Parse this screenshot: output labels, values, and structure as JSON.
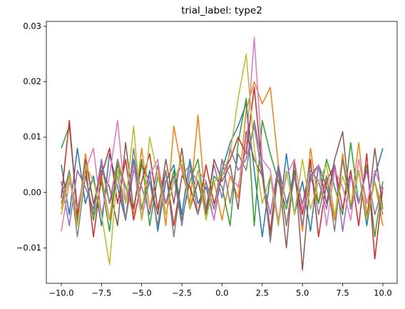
{
  "chart_data": {
    "type": "line",
    "title": "trial_label: type2",
    "x": [
      -10,
      -9.5,
      -9,
      -8.5,
      -8,
      -7.5,
      -7,
      -6.5,
      -6,
      -5.5,
      -5,
      -4.5,
      -4,
      -3.5,
      -3,
      -2.5,
      -2,
      -1.5,
      -1,
      -0.5,
      0,
      0.5,
      1,
      1.5,
      2,
      2.5,
      3,
      3.5,
      4,
      4.5,
      5,
      5.5,
      6,
      6.5,
      7,
      7.5,
      8,
      8.5,
      9,
      9.5,
      10
    ],
    "series": [
      {
        "color": "#1f77b4",
        "values": [
          0.005,
          -0.004,
          0.008,
          -0.002,
          0.003,
          -0.006,
          0.007,
          0.001,
          -0.005,
          0.006,
          -0.003,
          0.004,
          -0.007,
          0.002,
          0.005,
          -0.004,
          0.006,
          -0.002,
          0.001,
          -0.005,
          0.004,
          0.009,
          0.012,
          0.016,
          0.004,
          -0.008,
          0.003,
          -0.006,
          0.007,
          -0.004,
          0.002,
          -0.007,
          0.005,
          0.001,
          -0.005,
          0.006,
          -0.003,
          0.004,
          -0.006,
          0.003,
          0.008
        ]
      },
      {
        "color": "#ff7f0e",
        "values": [
          -0.003,
          0.004,
          -0.006,
          0.007,
          -0.002,
          0.003,
          -0.005,
          0.006,
          0.001,
          -0.004,
          0.008,
          -0.003,
          0.005,
          -0.006,
          0.012,
          0.004,
          -0.002,
          0.014,
          -0.003,
          0.002,
          -0.005,
          0.003,
          -0.001,
          0.015,
          0.02,
          0.016,
          0.019,
          0.005,
          -0.006,
          0.004,
          -0.007,
          0.008,
          -0.002,
          0.003,
          -0.005,
          0.007,
          -0.003,
          0.009,
          -0.004,
          0.002,
          -0.006
        ]
      },
      {
        "color": "#2ca02c",
        "values": [
          0.008,
          0.012,
          -0.003,
          0.004,
          -0.005,
          0.002,
          -0.007,
          0.005,
          0.001,
          -0.003,
          0.006,
          -0.006,
          0.003,
          -0.002,
          0.004,
          -0.005,
          0.002,
          0.006,
          -0.004,
          0.003,
          0.001,
          -0.006,
          0.009,
          0.017,
          -0.006,
          0.013,
          0.007,
          0.002,
          -0.003,
          0.004,
          -0.006,
          0.003,
          -0.002,
          0.006,
          0.001,
          -0.004,
          0.009,
          -0.002,
          0.005,
          -0.008,
          0.002
        ]
      },
      {
        "color": "#d62728",
        "values": [
          -0.001,
          0.013,
          -0.004,
          0.005,
          -0.008,
          0.003,
          0.008,
          -0.002,
          0.006,
          -0.005,
          0.002,
          0.007,
          -0.003,
          0.004,
          -0.006,
          0.003,
          0.001,
          -0.004,
          0.005,
          -0.002,
          0.003,
          0.006,
          0.01,
          0.007,
          0.019,
          0.004,
          -0.007,
          0.005,
          -0.006,
          0.003,
          -0.004,
          0.006,
          -0.008,
          0.002,
          0.005,
          -0.003,
          0.004,
          -0.006,
          0.007,
          -0.012,
          0.001
        ]
      },
      {
        "color": "#9467bd",
        "values": [
          0.002,
          -0.006,
          0.004,
          0.001,
          -0.003,
          0.006,
          -0.002,
          0.003,
          -0.005,
          0.004,
          0.001,
          -0.004,
          0.005,
          -0.002,
          0.003,
          -0.006,
          0.004,
          0.002,
          -0.003,
          0.005,
          -0.001,
          0.008,
          0.004,
          0.006,
          0.012,
          0.003,
          -0.004,
          0.005,
          -0.002,
          0.003,
          -0.006,
          0.004,
          0.002,
          -0.003,
          0.005,
          -0.007,
          0.003,
          -0.002,
          0.004,
          -0.004,
          0.001
        ]
      },
      {
        "color": "#8c564b",
        "values": [
          0,
          0.003,
          -0.005,
          0.006,
          -0.002,
          0.004,
          0.001,
          -0.006,
          0.009,
          -0.003,
          0.005,
          0.002,
          -0.004,
          0.006,
          -0.002,
          0.008,
          -0.003,
          0.002,
          -0.004,
          0.006,
          0.002,
          0.005,
          -0.003,
          0.011,
          0.006,
          0.003,
          -0.008,
          0.004,
          -0.01,
          0.006,
          -0.014,
          0.003,
          0.005,
          -0.002,
          0.006,
          0.011,
          -0.003,
          0.004,
          -0.005,
          0.008,
          -0.003
        ]
      },
      {
        "color": "#e377c2",
        "values": [
          -0.007,
          0.002,
          -0.003,
          0.004,
          0.008,
          -0.004,
          0.003,
          0.013,
          -0.002,
          0.005,
          -0.005,
          0.003,
          0.006,
          -0.004,
          0.002,
          0.005,
          -0.003,
          0.004,
          0.002,
          -0.005,
          0.006,
          0.003,
          0.001,
          0.008,
          0.028,
          0.006,
          0.004,
          -0.005,
          0.003,
          0.006,
          -0.003,
          0.002,
          0.005,
          -0.006,
          0.004,
          0.001,
          -0.005,
          0.006,
          -0.002,
          0.004,
          0
        ]
      },
      {
        "color": "#7f7f7f",
        "values": [
          -0.002,
          0.004,
          -0.008,
          0.003,
          -0.004,
          0.005,
          -0.002,
          0.006,
          -0.005,
          0.008,
          -0.003,
          0.002,
          -0.006,
          0.004,
          -0.008,
          0.003,
          0.005,
          -0.004,
          0.002,
          -0.003,
          0.006,
          -0.002,
          0.007,
          0.004,
          0.013,
          0.005,
          -0.009,
          0.004,
          -0.006,
          0.003,
          -0.002,
          0.005,
          -0.004,
          0.003,
          -0.007,
          0.006,
          -0.003,
          0.004,
          -0.005,
          0.002,
          -0.004
        ]
      },
      {
        "color": "#bcbd22",
        "values": [
          -0.004,
          0.003,
          -0.006,
          0.005,
          0.002,
          -0.004,
          -0.013,
          0.004,
          -0.002,
          0.012,
          -0.005,
          0.01,
          0.003,
          -0.004,
          0.002,
          0.006,
          -0.003,
          0.004,
          -0.005,
          0.002,
          0.003,
          0.007,
          0.017,
          0.025,
          0.008,
          -0.002,
          0.003,
          -0.006,
          0.004,
          -0.004,
          0.006,
          -0.003,
          0.002,
          0.005,
          -0.004,
          0.003,
          -0.002,
          0.004,
          -0.005,
          0.002,
          -0.003
        ]
      }
    ],
    "xlim": [
      -10.93,
      10.89
    ],
    "xticks": [
      {
        "value": -10,
        "label": "−10.0"
      },
      {
        "value": -7.5,
        "label": "−7.5"
      },
      {
        "value": -5,
        "label": "−5.0"
      },
      {
        "value": -2.5,
        "label": "−2.5"
      },
      {
        "value": 0,
        "label": "0.0"
      },
      {
        "value": 2.5,
        "label": "2.5"
      },
      {
        "value": 5,
        "label": "5.0"
      },
      {
        "value": 7.5,
        "label": "7.5"
      },
      {
        "value": 10,
        "label": "10.0"
      }
    ],
    "ylim": [
      -0.0164,
      0.0309
    ],
    "yticks": [
      {
        "value": -0.01,
        "label": "−0.01"
      },
      {
        "value": 0,
        "label": "0.00"
      },
      {
        "value": 0.01,
        "label": "0.01"
      },
      {
        "value": 0.02,
        "label": "0.02"
      },
      {
        "value": 0.03,
        "label": "0.03"
      }
    ]
  }
}
